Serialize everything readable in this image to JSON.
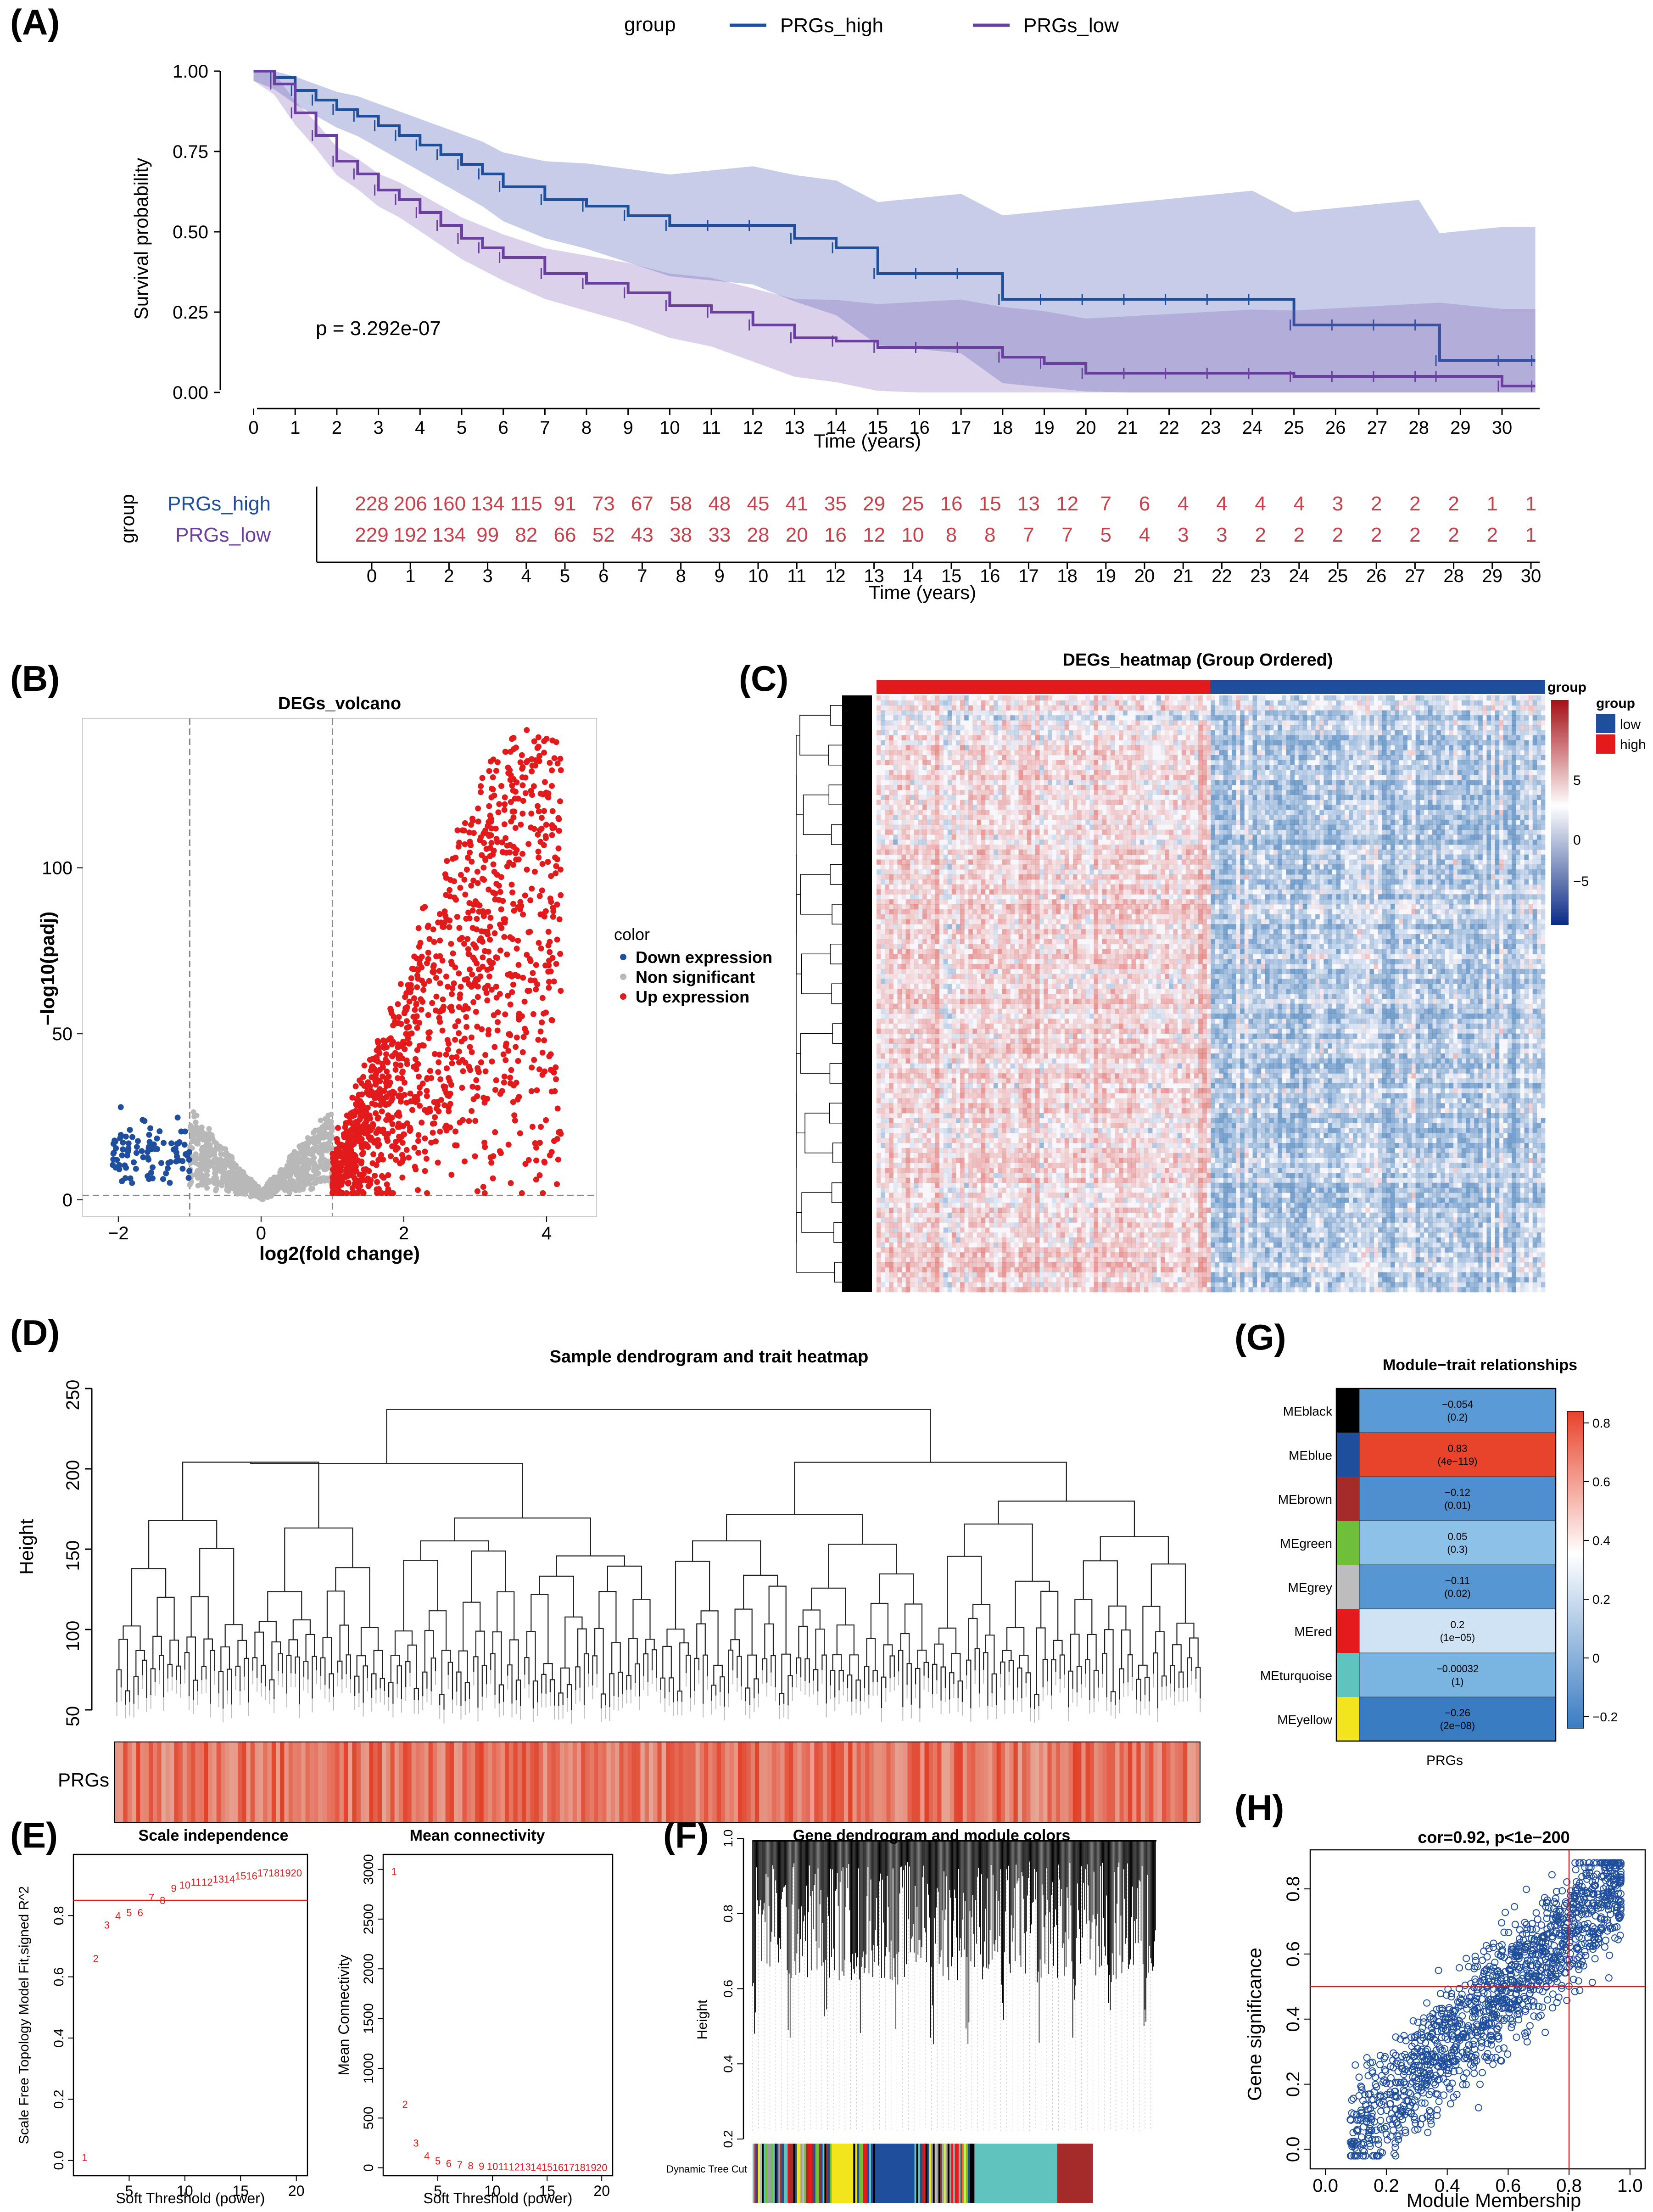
{
  "panels": {
    "A": "(A)",
    "B": "(B)",
    "C": "(C)",
    "D": "(D)",
    "E": "(E)",
    "F": "(F)",
    "G": "(G)",
    "H": "(H)"
  },
  "colors": {
    "high": "#1f4e9c",
    "low": "#6b3fa0",
    "up": "#e31a1c",
    "down": "#1f4e9c",
    "ns": "#b8b8b8",
    "hm_high": "#d73027",
    "hm_low": "#2166ac"
  },
  "chart_data": [
    {
      "id": "A",
      "type": "line",
      "legend_title": "group",
      "series": [
        {
          "name": "PRGs_high",
          "x": [
            0,
            0.5,
            1,
            1.5,
            2,
            2.5,
            3,
            3.5,
            4,
            4.5,
            5,
            5.5,
            6,
            7,
            8,
            9,
            10,
            11,
            12,
            13,
            14,
            15,
            16,
            17,
            18,
            19,
            20,
            21,
            22,
            23,
            24,
            25,
            26,
            27,
            28,
            28.5,
            30,
            30.8
          ],
          "y": [
            1.0,
            0.98,
            0.94,
            0.91,
            0.88,
            0.86,
            0.83,
            0.8,
            0.77,
            0.74,
            0.71,
            0.68,
            0.64,
            0.6,
            0.58,
            0.55,
            0.52,
            0.52,
            0.52,
            0.48,
            0.45,
            0.37,
            0.37,
            0.37,
            0.29,
            0.29,
            0.29,
            0.29,
            0.29,
            0.29,
            0.29,
            0.21,
            0.21,
            0.21,
            0.21,
            0.1,
            0.1,
            0.1
          ]
        },
        {
          "name": "PRGs_low",
          "x": [
            0,
            0.5,
            1,
            1.5,
            2,
            2.5,
            3,
            3.5,
            4,
            4.5,
            5,
            5.5,
            6,
            7,
            8,
            9,
            10,
            11,
            12,
            13,
            14,
            15,
            16,
            17,
            18,
            19,
            20,
            21,
            22,
            23,
            24,
            25,
            26,
            27,
            28,
            28.5,
            30,
            30.8
          ],
          "y": [
            1.0,
            0.96,
            0.87,
            0.8,
            0.72,
            0.68,
            0.63,
            0.6,
            0.56,
            0.52,
            0.48,
            0.45,
            0.42,
            0.37,
            0.34,
            0.31,
            0.27,
            0.25,
            0.21,
            0.17,
            0.16,
            0.14,
            0.14,
            0.14,
            0.11,
            0.09,
            0.06,
            0.06,
            0.06,
            0.06,
            0.06,
            0.05,
            0.05,
            0.05,
            0.05,
            0.05,
            0.02,
            0.02
          ]
        }
      ],
      "annotation": "p = 3.292e-07",
      "xlabel": "Time (years)",
      "ylabel": "Survival probability",
      "xticks": [
        0,
        1,
        2,
        3,
        4,
        5,
        6,
        7,
        8,
        9,
        10,
        11,
        12,
        13,
        14,
        15,
        16,
        17,
        18,
        19,
        20,
        21,
        22,
        23,
        24,
        25,
        26,
        27,
        28,
        29,
        30
      ],
      "yticks": [
        "0.00",
        "0.25",
        "0.50",
        "0.75",
        "1.00"
      ],
      "xlim": [
        -0.8,
        31.4
      ],
      "ylim": [
        0,
        1
      ]
    },
    {
      "id": "A-risk",
      "type": "table",
      "row_title": "group",
      "rows": [
        {
          "name": "PRGs_high",
          "values": [
            228,
            206,
            160,
            134,
            115,
            91,
            73,
            67,
            58,
            48,
            45,
            41,
            35,
            29,
            25,
            16,
            15,
            13,
            12,
            7,
            6,
            4,
            4,
            4,
            4,
            3,
            2,
            2,
            2,
            1,
            1
          ]
        },
        {
          "name": "PRGs_low",
          "values": [
            229,
            192,
            134,
            99,
            82,
            66,
            52,
            43,
            38,
            33,
            28,
            20,
            16,
            12,
            10,
            8,
            8,
            7,
            7,
            5,
            4,
            3,
            3,
            2,
            2,
            2,
            2,
            2,
            2,
            2,
            1
          ]
        }
      ],
      "xticks": [
        0,
        1,
        2,
        3,
        4,
        5,
        6,
        7,
        8,
        9,
        10,
        11,
        12,
        13,
        14,
        15,
        16,
        17,
        18,
        19,
        20,
        21,
        22,
        23,
        24,
        25,
        26,
        27,
        28,
        29,
        30
      ],
      "xlabel": "Time (years)"
    },
    {
      "id": "B",
      "type": "scatter",
      "title": "DEGs_volcano",
      "xlabel": "log2(fold change)",
      "ylabel": "−log10(padj)",
      "xticks": [
        "−2",
        "0",
        "2",
        "4"
      ],
      "yticks": [
        "0",
        "50",
        "100"
      ],
      "xlim": [
        -2.5,
        4.7
      ],
      "ylim": [
        -5,
        145
      ],
      "legend_title": "color",
      "legend": [
        "Down expression",
        "Non significant",
        "Up expression"
      ],
      "thresholds": {
        "log2fc": [
          -1,
          1
        ],
        "padj_line": 1.3
      }
    },
    {
      "id": "C",
      "type": "heatmap",
      "title": "DEGs_heatmap (Group Ordered)",
      "annotation_label": "group",
      "legend_title": "group",
      "groups": [
        "low",
        "high"
      ],
      "colorbar_ticks": [
        "5",
        "0",
        "−5"
      ]
    },
    {
      "id": "D",
      "type": "heatmap",
      "title": "Sample dendrogram and trait heatmap",
      "ylabel": "Height",
      "yticks": [
        "50",
        "100",
        "150",
        "200",
        "250"
      ],
      "trait_label": "PRGs"
    },
    {
      "id": "E1",
      "type": "scatter",
      "title": "Scale independence",
      "xlabel": "Soft Threshold (power)",
      "ylabel": "Scale Free Topology Model Fit,signed R^2",
      "x": [
        1,
        2,
        3,
        4,
        5,
        6,
        7,
        8,
        9,
        10,
        11,
        12,
        13,
        14,
        15,
        16,
        17,
        18,
        19,
        20
      ],
      "y": [
        0.01,
        0.66,
        0.77,
        0.8,
        0.81,
        0.81,
        0.86,
        0.85,
        0.89,
        0.9,
        0.91,
        0.91,
        0.92,
        0.92,
        0.93,
        0.93,
        0.94,
        0.94,
        0.94,
        0.94
      ],
      "labels": [
        "1",
        "2",
        "3",
        "4",
        "5",
        "6",
        "7",
        "8",
        "9",
        "10",
        "11",
        "12",
        "13",
        "14",
        "15",
        "16",
        "17",
        "18",
        "19",
        "20"
      ],
      "hline": 0.85,
      "xticks": [
        "5",
        "10",
        "15",
        "20"
      ],
      "yticks": [
        "0.0",
        "0.2",
        "0.4",
        "0.6",
        "0.8"
      ],
      "xlim": [
        0,
        21
      ],
      "ylim": [
        -0.05,
        1.0
      ]
    },
    {
      "id": "E2",
      "type": "scatter",
      "title": "Mean connectivity",
      "xlabel": "Soft Threshold (power)",
      "ylabel": "Mean Connectivity",
      "x": [
        1,
        2,
        3,
        4,
        5,
        6,
        7,
        8,
        9,
        10,
        11,
        12,
        13,
        14,
        15,
        16,
        17,
        18,
        19,
        20
      ],
      "y": [
        2980,
        640,
        250,
        120,
        70,
        45,
        30,
        22,
        18,
        15,
        12,
        10,
        9,
        8,
        7,
        6,
        5,
        5,
        4,
        4
      ],
      "labels": [
        "1",
        "2",
        "3",
        "4",
        "5",
        "6",
        "7",
        "8",
        "9",
        "10",
        "11",
        "12",
        "13",
        "14",
        "15",
        "16",
        "17",
        "18",
        "19",
        "20"
      ],
      "xticks": [
        "5",
        "10",
        "15",
        "20"
      ],
      "yticks": [
        "0",
        "500",
        "1000",
        "1500",
        "2000",
        "2500",
        "3000"
      ],
      "xlim": [
        0,
        21
      ],
      "ylim": [
        -80,
        3150
      ]
    },
    {
      "id": "F",
      "type": "heatmap",
      "title": "Gene dendrogram and module colors",
      "ylabel": "Height",
      "yticks": [
        "0.2",
        "0.4",
        "0.6",
        "0.8",
        "1.0"
      ],
      "track_label": "Dynamic Tree Cut"
    },
    {
      "id": "G",
      "type": "heatmap",
      "title": "Module−trait relationships",
      "xlabel": "PRGs",
      "modules": [
        {
          "name": "MEblack",
          "color": "#000000",
          "cor": "−0.054",
          "p": "(0.2)",
          "fill": "#5b9bd5"
        },
        {
          "name": "MEblue",
          "color": "#1f4e9c",
          "cor": "0.83",
          "p": "(4e−119)",
          "fill": "#e8432b"
        },
        {
          "name": "MEbrown",
          "color": "#a52a2a",
          "cor": "−0.12",
          "p": "(0.01)",
          "fill": "#4f8fcf"
        },
        {
          "name": "MEgreen",
          "color": "#6fbf3a",
          "cor": "0.05",
          "p": "(0.3)",
          "fill": "#8ec1e8"
        },
        {
          "name": "MEgrey",
          "color": "#bdbdbd",
          "cor": "−0.11",
          "p": "(0.02)",
          "fill": "#5596d3"
        },
        {
          "name": "MEred",
          "color": "#e41a1c",
          "cor": "0.2",
          "p": "(1e−05)",
          "fill": "#cfe3f5"
        },
        {
          "name": "MEturquoise",
          "color": "#5fc4bd",
          "cor": "−0.00032",
          "p": "(1)",
          "fill": "#7ab5e1"
        },
        {
          "name": "MEyellow",
          "color": "#f2e51d",
          "cor": "−0.26",
          "p": "(2e−08)",
          "fill": "#3a7cc2"
        }
      ],
      "colorbar_ticks": [
        "0.8",
        "0.6",
        "0.4",
        "0.2",
        "0",
        "−0.2"
      ]
    },
    {
      "id": "H",
      "type": "scatter",
      "title": "cor=0.92, p<1e−200",
      "xlabel": "Module Membership",
      "ylabel": "Gene significance",
      "xticks": [
        "0.0",
        "0.2",
        "0.4",
        "0.6",
        "0.8",
        "1.0"
      ],
      "yticks": [
        "0.0",
        "0.2",
        "0.4",
        "0.6",
        "0.8"
      ],
      "xlim": [
        -0.05,
        1.05
      ],
      "ylim": [
        -0.06,
        0.92
      ],
      "vline": 0.8,
      "hline": 0.5
    }
  ]
}
